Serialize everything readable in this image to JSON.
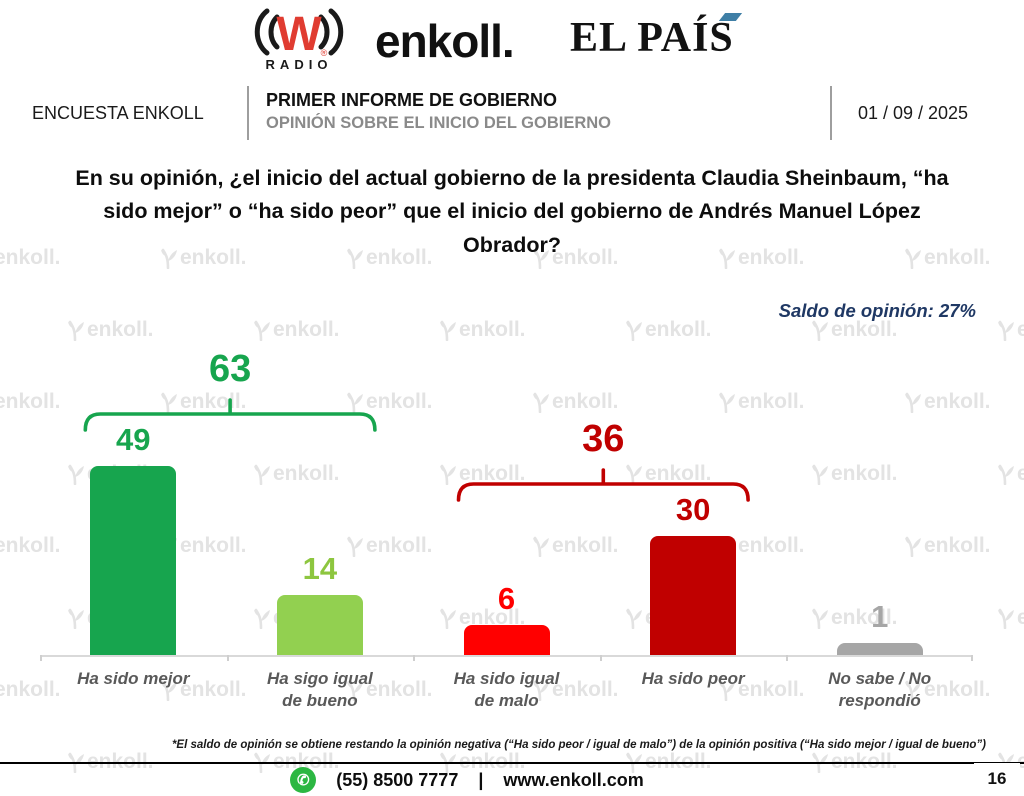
{
  "header": {
    "logos": {
      "wradio": {
        "letter": "W",
        "sub": "RADIO",
        "reg": "®",
        "red": "#e03c31"
      },
      "enkoll": "enkoll.",
      "elpais": "EL PAÍS",
      "elpais_accent_color": "#3f7fa6"
    },
    "band": {
      "left": "ENCUESTA ENKOLL",
      "title": "PRIMER INFORME DE GOBIERNO",
      "subtitle": "OPINIÓN SOBRE EL INICIO DEL GOBIERNO",
      "date": "01 / 09 / 2025"
    }
  },
  "question": "En su opinión, ¿el inicio del actual gobierno de la presidenta Claudia Sheinbaum, “ha sido mejor” o “ha sido peor” que el inicio del gobierno de Andrés Manuel López Obrador?",
  "balance": {
    "label": "Saldo de opinión: 27%",
    "color": "#1f3864"
  },
  "chart_data": {
    "type": "bar",
    "title": "",
    "xlabel": "",
    "ylabel": "",
    "ylim": [
      0,
      55
    ],
    "grid": false,
    "legend": "none",
    "categories": [
      "Ha sido mejor",
      "Ha sigo igual de bueno",
      "Ha sido igual de malo",
      "Ha sido peor",
      "No sabe / No respondió"
    ],
    "values": [
      49,
      14,
      6,
      30,
      1
    ],
    "bar_colors": [
      "#17a54e",
      "#92d050",
      "#ff0000",
      "#c00000",
      "#a6a6a6"
    ],
    "value_label_colors": [
      "#17a54e",
      "#8dc63f",
      "#ff0000",
      "#c00000",
      "#a6a6a6"
    ],
    "groups": [
      {
        "sum": 63,
        "from": 0,
        "to": 1,
        "color": "#17a54e"
      },
      {
        "sum": 36,
        "from": 2,
        "to": 3,
        "color": "#c00000"
      }
    ],
    "annotations": [
      "Saldo de opinión: 27%"
    ]
  },
  "watermark": {
    "text": "enkoll.",
    "color": "#e3e3e3"
  },
  "footnote": "*El saldo de opinión se obtiene restando la opinión negativa (“Ha sido peor / igual de malo”) de la opinión positiva (“Ha sido mejor / igual de bueno”)",
  "footer": {
    "phone": "(55) 8500 7777",
    "separator": "|",
    "url": "www.enkoll.com",
    "page": "16",
    "whatsapp_icon_color": "#2cb742"
  }
}
